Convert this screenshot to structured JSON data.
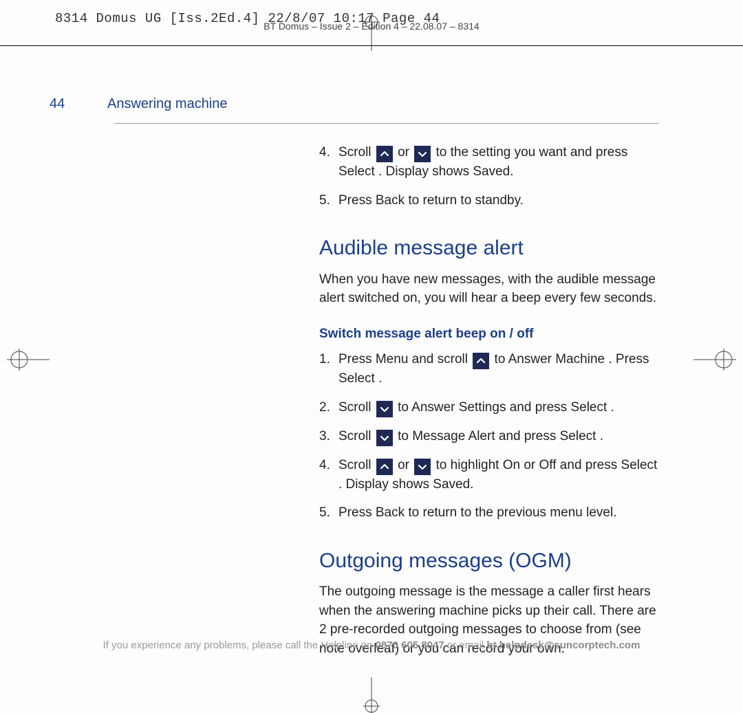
{
  "colors": {
    "heading": "#1b3e8b",
    "body": "#222222",
    "footer": "#9a9a9a",
    "icon_bg": "#1e2a55",
    "icon_fg": "#ffffff",
    "rule": "#000000",
    "thin_rule": "#999999",
    "background": "#fdfdfd"
  },
  "typography": {
    "body_pt": 19,
    "heading_pt": 30,
    "sub_pt": 19,
    "footer_pt": 15,
    "slug_family": "monospace"
  },
  "slug": "8314 Domus UG [Iss.2Ed.4]  22/8/07  10:17  Page 44",
  "running_head": "BT Domus – Issue 2 – Edition 4 – 22.08.07 – 8314",
  "page_number": "44",
  "section_title": "Answering machine",
  "cont_steps": [
    {
      "n": "4.",
      "parts": [
        {
          "t": "Scroll "
        },
        {
          "icon": "up"
        },
        {
          "t": " or "
        },
        {
          "icon": "down"
        },
        {
          "t": " to the setting you want and press "
        },
        {
          "ui": "Select"
        },
        {
          "t": " . Display shows "
        },
        {
          "ui": "Saved"
        },
        {
          "t": "."
        }
      ]
    },
    {
      "n": "5.",
      "parts": [
        {
          "t": "Press "
        },
        {
          "ui": "Back"
        },
        {
          "t": " to return to standby."
        }
      ]
    }
  ],
  "alert_title": "Audible message alert",
  "alert_intro": "When you have new messages, with the audible message alert switched on, you will hear a beep every few seconds.",
  "alert_sub": "Switch message alert beep on / off",
  "alert_steps": [
    {
      "n": "1.",
      "parts": [
        {
          "t": "Press "
        },
        {
          "ui": "Menu"
        },
        {
          "t": " and scroll "
        },
        {
          "icon": "up"
        },
        {
          "t": " to "
        },
        {
          "ui": "Answer Machine"
        },
        {
          "t": " . Press "
        },
        {
          "ui": "Select"
        },
        {
          "t": " ."
        }
      ]
    },
    {
      "n": "2.",
      "parts": [
        {
          "t": "Scroll "
        },
        {
          "icon": "down"
        },
        {
          "t": " to "
        },
        {
          "ui": "Answer Settings"
        },
        {
          "t": "    and press "
        },
        {
          "ui": "Select"
        },
        {
          "t": " ."
        }
      ]
    },
    {
      "n": "3.",
      "parts": [
        {
          "t": "Scroll "
        },
        {
          "icon": "down"
        },
        {
          "t": " to "
        },
        {
          "ui": "Message Alert"
        },
        {
          "t": "   and press "
        },
        {
          "ui": "Select"
        },
        {
          "t": " ."
        }
      ]
    },
    {
      "n": "4.",
      "parts": [
        {
          "t": "Scroll "
        },
        {
          "icon": "up"
        },
        {
          "t": " or "
        },
        {
          "icon": "down"
        },
        {
          "t": " to highlight "
        },
        {
          "ui": "On"
        },
        {
          "t": " or "
        },
        {
          "ui": "Off"
        },
        {
          "t": "  and press "
        },
        {
          "ui": "Select"
        },
        {
          "t": " . Display shows "
        },
        {
          "ui": "Saved"
        },
        {
          "t": "."
        }
      ]
    },
    {
      "n": "5.",
      "parts": [
        {
          "t": "Press "
        },
        {
          "ui": "Back"
        },
        {
          "t": " to return to the previous menu level."
        }
      ]
    }
  ],
  "ogm_title": "Outgoing messages (OGM)",
  "ogm_intro": "The outgoing message is the message a caller first hears when the answering machine picks up their call. There are 2 pre-recorded outgoing messages to choose from (see note overleaf) or you can record your own.",
  "footer_pre": "If you experience any problems, please call the Helpline on ",
  "footer_phone": "0870 605 8047",
  "footer_mid": " or email ",
  "footer_email": "bt.helpdesk@suncorptech.com"
}
